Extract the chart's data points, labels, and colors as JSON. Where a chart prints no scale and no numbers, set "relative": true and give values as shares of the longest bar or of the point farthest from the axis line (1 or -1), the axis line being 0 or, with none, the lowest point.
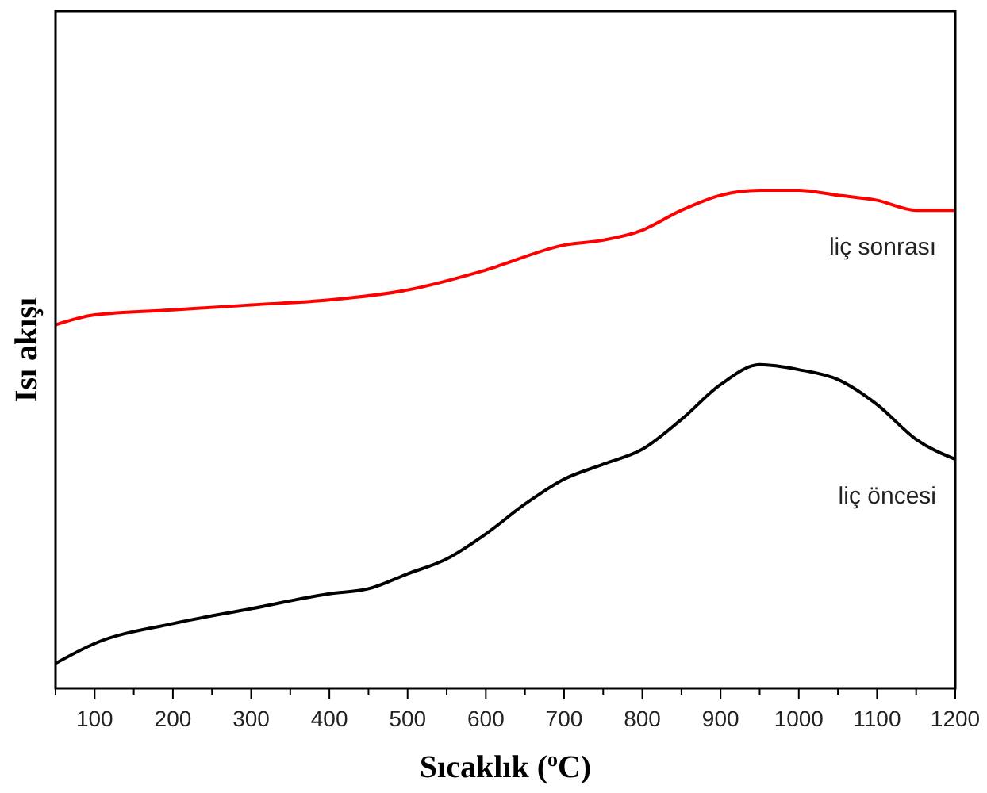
{
  "chart_data": {
    "type": "line",
    "xlabel": "Sıcaklık ($^{o}$C)",
    "ylabel": "Isı akışı",
    "relative": true,
    "legend": false,
    "grid": false,
    "marker": "none",
    "line_style": "solid",
    "xlim": [
      50,
      1200
    ],
    "xticks": [
      {
        "value": 50,
        "label": null
      },
      100,
      {
        "value": 150,
        "label": null
      },
      200,
      {
        "value": 250,
        "label": null
      },
      300,
      {
        "value": 350,
        "label": null
      },
      400,
      {
        "value": 450,
        "label": null
      },
      500,
      {
        "value": 550,
        "label": null
      },
      600,
      {
        "value": 650,
        "label": null
      },
      700,
      {
        "value": 750,
        "label": null
      },
      800,
      {
        "value": 850,
        "label": null
      },
      900,
      {
        "value": 950,
        "label": null
      },
      1000,
      {
        "value": 1050,
        "label": null
      },
      1100,
      {
        "value": 1150,
        "label": null
      },
      1200
    ],
    "series": [
      {
        "name": "liç sonrası",
        "color": "#ff0000",
        "x": [
          50,
          100,
          200,
          300,
          400,
          500,
          600,
          700,
          750,
          800,
          850,
          900,
          950,
          1000,
          1050,
          1100,
          1150,
          1200
        ],
        "values": [
          0.73,
          0.75,
          0.76,
          0.77,
          0.78,
          0.8,
          0.84,
          0.89,
          0.9,
          0.92,
          0.96,
          0.99,
          1,
          1,
          0.99,
          0.98,
          0.96,
          0.96
        ]
      },
      {
        "name": "liç öncesi",
        "color": "#000000",
        "x": [
          50,
          100,
          200,
          300,
          400,
          450,
          500,
          550,
          600,
          650,
          700,
          750,
          800,
          850,
          900,
          950,
          1000,
          1050,
          1100,
          1150,
          1200
        ],
        "values": [
          0.05,
          0.09,
          0.13,
          0.16,
          0.19,
          0.2,
          0.23,
          0.26,
          0.31,
          0.37,
          0.42,
          0.45,
          0.48,
          0.54,
          0.61,
          0.65,
          0.64,
          0.62,
          0.57,
          0.5,
          0.46
        ]
      }
    ]
  }
}
